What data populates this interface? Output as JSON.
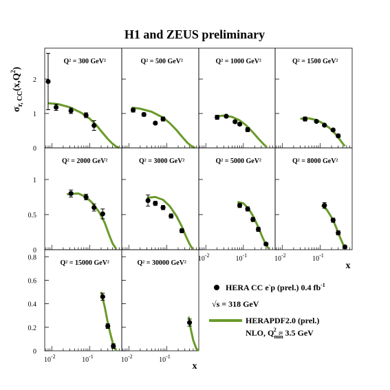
{
  "figure": {
    "title": "H1 and ZEUS preliminary",
    "ylabel": "σ",
    "ylabel_sub": "r, CC",
    "ylabel_args": "(x,Q",
    "ylabel_sup": "2",
    "ylabel_close": ")",
    "xlabel": "x",
    "legend": {
      "data_label": "HERA CC e",
      "data_label_sup": "-",
      "data_label_rest": "p (prel.) 0.4 fb",
      "data_label_lumi_sup": "-1",
      "sqrt_s_label": "√s = 318 GeV",
      "theory_label": "HERAPDF2.0 (prel.)",
      "theory_label2": "NLO, Q",
      "theory_label2_sub": "min",
      "theory_label2_sup": "2",
      "theory_label2_rest": " = 3.5 GeV"
    },
    "colors": {
      "theory": "#6a9a2a",
      "data": "#000000",
      "frame": "#000000"
    }
  },
  "chart_data": [
    {
      "type": "scatter",
      "title": "Q² = 300 GeV²",
      "q2": "300",
      "xlog": true,
      "ylim": [
        0,
        2.9
      ],
      "points": [
        {
          "x": 0.008,
          "y": 1.93,
          "err": 0.82
        },
        {
          "x": 0.013,
          "y": 1.18,
          "err": 0.09
        },
        {
          "x": 0.032,
          "y": 1.08,
          "err": 0.08
        },
        {
          "x": 0.08,
          "y": 0.95,
          "err": 0.07
        },
        {
          "x": 0.13,
          "y": 0.65,
          "err": 0.14
        }
      ],
      "theory": [
        {
          "x": 0.008,
          "y": 1.3
        },
        {
          "x": 0.015,
          "y": 1.27
        },
        {
          "x": 0.03,
          "y": 1.18
        },
        {
          "x": 0.06,
          "y": 1.02
        },
        {
          "x": 0.1,
          "y": 0.85
        },
        {
          "x": 0.15,
          "y": 0.66
        },
        {
          "x": 0.2,
          "y": 0.49
        },
        {
          "x": 0.3,
          "y": 0.26
        },
        {
          "x": 0.4,
          "y": 0.12
        },
        {
          "x": 0.5,
          "y": 0.04
        },
        {
          "x": 0.6,
          "y": 0.0
        }
      ]
    },
    {
      "type": "scatter",
      "title": "Q² = 500 GeV²",
      "q2": "500",
      "xlog": true,
      "ylim": [
        0,
        2.9
      ],
      "points": [
        {
          "x": 0.013,
          "y": 1.1,
          "err": 0.06
        },
        {
          "x": 0.025,
          "y": 0.97,
          "err": 0.05
        },
        {
          "x": 0.05,
          "y": 0.72,
          "err": 0.04
        },
        {
          "x": 0.08,
          "y": 0.84,
          "err": 0.06
        }
      ],
      "theory": [
        {
          "x": 0.012,
          "y": 1.17
        },
        {
          "x": 0.02,
          "y": 1.14
        },
        {
          "x": 0.04,
          "y": 1.05
        },
        {
          "x": 0.08,
          "y": 0.88
        },
        {
          "x": 0.12,
          "y": 0.72
        },
        {
          "x": 0.18,
          "y": 0.52
        },
        {
          "x": 0.25,
          "y": 0.33
        },
        {
          "x": 0.35,
          "y": 0.15
        },
        {
          "x": 0.45,
          "y": 0.05
        },
        {
          "x": 0.55,
          "y": 0.0
        }
      ]
    },
    {
      "type": "scatter",
      "title": "Q² = 1000 GeV²",
      "q2": "1000",
      "xlog": true,
      "ylim": [
        0,
        2.9
      ],
      "points": [
        {
          "x": 0.02,
          "y": 0.89,
          "err": 0.06
        },
        {
          "x": 0.035,
          "y": 0.92,
          "err": 0.04
        },
        {
          "x": 0.06,
          "y": 0.76,
          "err": 0.04
        },
        {
          "x": 0.08,
          "y": 0.69,
          "err": 0.04
        },
        {
          "x": 0.13,
          "y": 0.53,
          "err": 0.06
        }
      ],
      "theory": [
        {
          "x": 0.02,
          "y": 0.92
        },
        {
          "x": 0.03,
          "y": 0.94
        },
        {
          "x": 0.05,
          "y": 0.9
        },
        {
          "x": 0.08,
          "y": 0.8
        },
        {
          "x": 0.12,
          "y": 0.65
        },
        {
          "x": 0.18,
          "y": 0.45
        },
        {
          "x": 0.25,
          "y": 0.27
        },
        {
          "x": 0.35,
          "y": 0.1
        },
        {
          "x": 0.42,
          "y": 0.02
        }
      ]
    },
    {
      "type": "scatter",
      "title": "Q² = 1500 GeV²",
      "q2": "1500",
      "xlog": true,
      "ylim": [
        0,
        2.9
      ],
      "points": [
        {
          "x": 0.04,
          "y": 0.84,
          "err": 0.06
        },
        {
          "x": 0.08,
          "y": 0.77,
          "err": 0.03
        },
        {
          "x": 0.13,
          "y": 0.66,
          "err": 0.03
        },
        {
          "x": 0.22,
          "y": 0.52,
          "err": 0.04
        },
        {
          "x": 0.3,
          "y": 0.35,
          "err": 0.05
        }
      ],
      "theory": [
        {
          "x": 0.03,
          "y": 0.85
        },
        {
          "x": 0.05,
          "y": 0.86
        },
        {
          "x": 0.08,
          "y": 0.81
        },
        {
          "x": 0.12,
          "y": 0.71
        },
        {
          "x": 0.18,
          "y": 0.57
        },
        {
          "x": 0.25,
          "y": 0.41
        },
        {
          "x": 0.32,
          "y": 0.26
        },
        {
          "x": 0.4,
          "y": 0.12
        },
        {
          "x": 0.45,
          "y": 0.05
        }
      ]
    },
    {
      "type": "scatter",
      "title": "Q² = 2000 GeV²",
      "q2": "2000",
      "xlog": true,
      "ylim": [
        0,
        1.45
      ],
      "points": [
        {
          "x": 0.032,
          "y": 0.8,
          "err": 0.05
        },
        {
          "x": 0.08,
          "y": 0.75,
          "err": 0.04
        },
        {
          "x": 0.13,
          "y": 0.6,
          "err": 0.05
        },
        {
          "x": 0.22,
          "y": 0.51,
          "err": 0.07
        }
      ],
      "theory": [
        {
          "x": 0.025,
          "y": 0.79
        },
        {
          "x": 0.05,
          "y": 0.8
        },
        {
          "x": 0.08,
          "y": 0.75
        },
        {
          "x": 0.12,
          "y": 0.66
        },
        {
          "x": 0.18,
          "y": 0.53
        },
        {
          "x": 0.25,
          "y": 0.38
        },
        {
          "x": 0.32,
          "y": 0.22
        },
        {
          "x": 0.4,
          "y": 0.09
        },
        {
          "x": 0.5,
          "y": 0.01
        }
      ]
    },
    {
      "type": "scatter",
      "title": "Q² = 3000 GeV²",
      "q2": "3000",
      "xlog": true,
      "ylim": [
        0,
        1.45
      ],
      "points": [
        {
          "x": 0.032,
          "y": 0.7,
          "err": 0.08
        },
        {
          "x": 0.05,
          "y": 0.66,
          "err": 0.03
        },
        {
          "x": 0.08,
          "y": 0.6,
          "err": 0.03
        },
        {
          "x": 0.13,
          "y": 0.48,
          "err": 0.03
        },
        {
          "x": 0.25,
          "y": 0.27,
          "err": 0.03
        }
      ],
      "theory": [
        {
          "x": 0.03,
          "y": 0.74
        },
        {
          "x": 0.05,
          "y": 0.75
        },
        {
          "x": 0.08,
          "y": 0.71
        },
        {
          "x": 0.12,
          "y": 0.62
        },
        {
          "x": 0.18,
          "y": 0.48
        },
        {
          "x": 0.25,
          "y": 0.33
        },
        {
          "x": 0.32,
          "y": 0.19
        },
        {
          "x": 0.4,
          "y": 0.08
        },
        {
          "x": 0.48,
          "y": 0.01
        }
      ]
    },
    {
      "type": "scatter",
      "title": "Q² = 5000 GeV²",
      "q2": "5000",
      "xlog": true,
      "ylim": [
        0,
        1.45
      ],
      "points": [
        {
          "x": 0.08,
          "y": 0.63,
          "err": 0.03
        },
        {
          "x": 0.13,
          "y": 0.58,
          "err": 0.03
        },
        {
          "x": 0.18,
          "y": 0.43,
          "err": 0.03
        },
        {
          "x": 0.25,
          "y": 0.29,
          "err": 0.03
        },
        {
          "x": 0.4,
          "y": 0.08,
          "err": 0.02
        }
      ],
      "theory": [
        {
          "x": 0.07,
          "y": 0.68
        },
        {
          "x": 0.1,
          "y": 0.66
        },
        {
          "x": 0.14,
          "y": 0.58
        },
        {
          "x": 0.18,
          "y": 0.48
        },
        {
          "x": 0.25,
          "y": 0.32
        },
        {
          "x": 0.32,
          "y": 0.18
        },
        {
          "x": 0.4,
          "y": 0.07
        },
        {
          "x": 0.48,
          "y": 0.01
        }
      ]
    },
    {
      "type": "scatter",
      "title": "Q² = 8000 GeV²",
      "q2": "8000",
      "xlog": true,
      "ylim": [
        0,
        1.45
      ],
      "points": [
        {
          "x": 0.13,
          "y": 0.63,
          "err": 0.04
        },
        {
          "x": 0.22,
          "y": 0.42,
          "err": 0.03
        },
        {
          "x": 0.3,
          "y": 0.24,
          "err": 0.03
        },
        {
          "x": 0.45,
          "y": 0.04,
          "err": 0.01
        }
      ],
      "theory": [
        {
          "x": 0.11,
          "y": 0.63
        },
        {
          "x": 0.15,
          "y": 0.57
        },
        {
          "x": 0.2,
          "y": 0.46
        },
        {
          "x": 0.25,
          "y": 0.35
        },
        {
          "x": 0.32,
          "y": 0.2
        },
        {
          "x": 0.4,
          "y": 0.08
        },
        {
          "x": 0.47,
          "y": 0.01
        }
      ]
    },
    {
      "type": "scatter",
      "title": "Q² = 15000 GeV²",
      "q2": "15000",
      "xlog": true,
      "ylim": [
        0,
        0.86
      ],
      "points": [
        {
          "x": 0.22,
          "y": 0.46,
          "err": 0.03
        },
        {
          "x": 0.3,
          "y": 0.21,
          "err": 0.02
        },
        {
          "x": 0.42,
          "y": 0.04,
          "err": 0.02
        }
      ],
      "theory": [
        {
          "x": 0.2,
          "y": 0.5
        },
        {
          "x": 0.25,
          "y": 0.37
        },
        {
          "x": 0.3,
          "y": 0.24
        },
        {
          "x": 0.36,
          "y": 0.13
        },
        {
          "x": 0.42,
          "y": 0.05
        },
        {
          "x": 0.5,
          "y": 0.0
        }
      ]
    },
    {
      "type": "scatter",
      "title": "Q² = 30000 GeV²",
      "q2": "30000",
      "xlog": true,
      "ylim": [
        0,
        0.86
      ],
      "points": [
        {
          "x": 0.4,
          "y": 0.24,
          "err": 0.03
        }
      ],
      "theory": [
        {
          "x": 0.38,
          "y": 0.29
        },
        {
          "x": 0.42,
          "y": 0.2
        },
        {
          "x": 0.5,
          "y": 0.09
        },
        {
          "x": 0.6,
          "y": 0.02
        },
        {
          "x": 0.7,
          "y": 0.0
        }
      ]
    }
  ],
  "axes": {
    "row_ticks": [
      [
        {
          "v": 0,
          "label": "0"
        },
        {
          "v": 1,
          "label": "1"
        },
        {
          "v": 2,
          "label": "2"
        }
      ],
      [
        {
          "v": 0,
          "label": "0"
        },
        {
          "v": 0.5,
          "label": "0.5"
        },
        {
          "v": 1,
          "label": "1"
        }
      ],
      [
        {
          "v": 0,
          "label": "0"
        },
        {
          "v": 0.2,
          "label": "0.2"
        },
        {
          "v": 0.4,
          "label": "0.4"
        },
        {
          "v": 0.6,
          "label": "0.6"
        },
        {
          "v": 0.8,
          "label": "0.8"
        }
      ]
    ],
    "xrange": [
      0.0065,
      0.7
    ],
    "x_tick_base": "10",
    "x_tick_exps": [
      "-2",
      "-1"
    ],
    "x_tick_values": [
      0.01,
      0.1
    ]
  }
}
